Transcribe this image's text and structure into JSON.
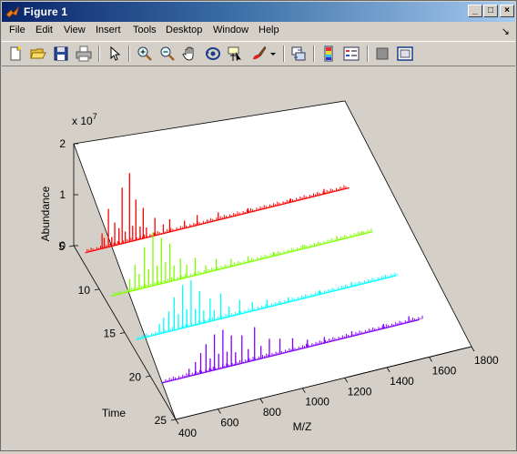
{
  "window": {
    "title": "Figure 1",
    "controls": {
      "minimize": "_",
      "maximize": "□",
      "close": "×"
    }
  },
  "menu": {
    "items": [
      "File",
      "Edit",
      "View",
      "Insert",
      "Tools",
      "Desktop",
      "Window",
      "Help"
    ],
    "overflow_arrow": "↘"
  },
  "toolbar": {
    "tools": [
      "new-figure-icon",
      "open-file-icon",
      "save-icon",
      "print-icon",
      "arrow-select-icon",
      "zoom-in-icon",
      "zoom-out-icon",
      "pan-hand-icon",
      "rotate-3d-icon",
      "data-cursor-icon",
      "brush-icon",
      "dropdown-arrow-icon",
      "link-plot-icon",
      "colorbar-icon",
      "legend-icon",
      "hide-plot-tools-icon",
      "show-plot-tools-icon"
    ]
  },
  "chart_data": {
    "type": "line",
    "projection": "3d-waterfall",
    "xlabel": "M/Z",
    "ylabel": "Time",
    "zlabel": "Abundance",
    "z_exponent_label": "x 10",
    "z_exponent": "7",
    "xlim": [
      400,
      1800
    ],
    "ylim": [
      5,
      25
    ],
    "zlim": [
      0,
      20000000
    ],
    "x_ticks": [
      "400",
      "600",
      "800",
      "1000",
      "1200",
      "1400",
      "1600",
      "1800"
    ],
    "y_ticks": [
      "5",
      "10",
      "15",
      "20",
      "25"
    ],
    "z_ticks": [
      "0",
      "1",
      "2"
    ],
    "grid": false,
    "series": [
      {
        "time": 6,
        "color": "#ff0000",
        "peaks": [
          [
            510,
            3000000
          ],
          [
            520,
            2000000
          ],
          [
            540,
            7500000
          ],
          [
            556,
            1800000
          ],
          [
            570,
            4500000
          ],
          [
            590,
            3200000
          ],
          [
            605,
            11000000
          ],
          [
            620,
            2200000
          ],
          [
            640,
            13500000
          ],
          [
            655,
            3000000
          ],
          [
            670,
            8000000
          ],
          [
            690,
            2500000
          ],
          [
            705,
            6000000
          ],
          [
            720,
            2000000
          ],
          [
            760,
            3500000
          ],
          [
            800,
            1800000
          ],
          [
            830,
            2500000
          ],
          [
            900,
            1500000
          ],
          [
            960,
            2000000
          ],
          [
            1060,
            1500000
          ],
          [
            1200,
            900000
          ],
          [
            1400,
            700000
          ],
          [
            1560,
            1000000
          ]
        ]
      },
      {
        "time": 11,
        "color": "#80ff00",
        "peaks": [
          [
            520,
            2500000
          ],
          [
            545,
            5000000
          ],
          [
            565,
            3000000
          ],
          [
            590,
            8000000
          ],
          [
            610,
            3500000
          ],
          [
            630,
            10500000
          ],
          [
            650,
            3800000
          ],
          [
            670,
            9000000
          ],
          [
            690,
            4000000
          ],
          [
            710,
            7500000
          ],
          [
            730,
            3000000
          ],
          [
            760,
            4000000
          ],
          [
            790,
            2500000
          ],
          [
            830,
            3500000
          ],
          [
            880,
            1500000
          ],
          [
            930,
            2200000
          ],
          [
            1000,
            1500000
          ],
          [
            1080,
            1200000
          ],
          [
            1200,
            900000
          ],
          [
            1340,
            800000
          ],
          [
            1500,
            900000
          ],
          [
            1620,
            600000
          ]
        ]
      },
      {
        "time": 16,
        "color": "#00ffff",
        "peaks": [
          [
            540,
            2000000
          ],
          [
            560,
            3000000
          ],
          [
            585,
            4000000
          ],
          [
            610,
            6500000
          ],
          [
            630,
            3000000
          ],
          [
            650,
            8500000
          ],
          [
            670,
            3500000
          ],
          [
            690,
            9000000
          ],
          [
            710,
            3200000
          ],
          [
            730,
            6500000
          ],
          [
            750,
            2500000
          ],
          [
            780,
            4500000
          ],
          [
            800,
            2000000
          ],
          [
            830,
            5000000
          ],
          [
            870,
            2000000
          ],
          [
            920,
            2800000
          ],
          [
            980,
            1800000
          ],
          [
            1050,
            1500000
          ],
          [
            1150,
            1000000
          ],
          [
            1300,
            800000
          ],
          [
            1450,
            900000
          ]
        ]
      },
      {
        "time": 21,
        "color": "#8000ff",
        "peaks": [
          [
            560,
            1500000
          ],
          [
            590,
            2500000
          ],
          [
            615,
            4000000
          ],
          [
            640,
            5500000
          ],
          [
            660,
            2500000
          ],
          [
            680,
            7000000
          ],
          [
            700,
            3000000
          ],
          [
            720,
            7500000
          ],
          [
            740,
            3000000
          ],
          [
            760,
            6000000
          ],
          [
            780,
            2500000
          ],
          [
            810,
            5500000
          ],
          [
            840,
            2500000
          ],
          [
            870,
            6500000
          ],
          [
            900,
            2500000
          ],
          [
            940,
            3500000
          ],
          [
            990,
            3000000
          ],
          [
            1050,
            2500000
          ],
          [
            1120,
            1500000
          ],
          [
            1200,
            1200000
          ],
          [
            1330,
            1000000
          ],
          [
            1480,
            900000
          ],
          [
            1600,
            1200000
          ]
        ]
      }
    ]
  }
}
